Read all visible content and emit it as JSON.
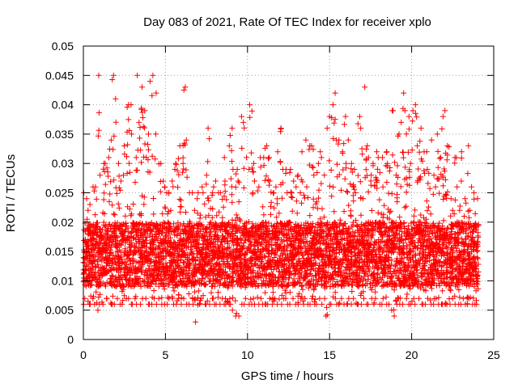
{
  "chart_data": {
    "type": "scatter",
    "title": "Day 083 of 2021, Rate Of TEC Index for receiver xplo",
    "xlabel": "GPS time / hours",
    "ylabel": "ROTI / TECUs",
    "xlim": [
      0,
      25
    ],
    "ylim": [
      0,
      0.05
    ],
    "xticks": [
      "0",
      "5",
      "10",
      "15",
      "20",
      "25"
    ],
    "yticks": [
      "0",
      "0.005",
      "0.01",
      "0.015",
      "0.02",
      "0.025",
      "0.03",
      "0.035",
      "0.04",
      "0.045",
      "0.05"
    ],
    "grid": true,
    "grid_style": "dotted",
    "marker": "plus",
    "marker_color": "#ff0000",
    "series": [
      {
        "x": [
          0.0,
          0.15,
          0.3,
          0.45,
          0.6,
          0.75,
          0.9,
          1.05,
          1.2,
          1.35,
          1.5,
          1.65,
          1.8,
          1.95,
          2.1,
          2.25,
          2.4,
          2.55,
          2.7,
          2.85,
          3.0,
          3.15,
          3.3,
          3.45,
          3.6,
          3.75,
          3.9,
          4.05,
          4.2,
          4.35,
          4.5,
          4.65,
          4.8,
          4.95,
          5.1,
          5.25,
          5.4,
          5.55,
          5.7,
          5.85,
          6.0,
          6.15,
          6.3,
          6.45,
          6.6,
          6.75,
          6.9,
          7.05,
          7.2,
          7.35,
          7.5,
          7.65,
          7.8,
          7.95,
          8.1,
          8.25,
          8.4,
          8.55,
          8.7,
          8.85,
          9.0,
          9.15,
          9.3,
          9.45,
          9.6,
          9.75,
          9.9,
          10.05,
          10.2,
          10.35,
          10.5,
          10.65,
          10.8,
          10.95,
          11.1,
          11.25,
          11.4,
          11.55,
          11.7,
          11.85,
          12.0,
          12.15,
          12.3,
          12.45,
          12.6,
          12.75,
          12.9,
          13.05,
          13.2,
          13.35,
          13.5,
          13.65,
          13.8,
          13.95,
          14.1,
          14.25,
          14.4,
          14.55,
          14.7,
          14.85,
          15.0,
          15.15,
          15.3,
          15.45,
          15.6,
          15.75,
          15.9,
          16.05,
          16.2,
          16.35,
          16.5,
          16.65,
          16.8,
          16.95,
          17.1,
          17.25,
          17.4,
          17.55,
          17.7,
          17.85,
          18.0,
          18.15,
          18.3,
          18.45,
          18.6,
          18.75,
          18.9,
          19.05,
          19.2,
          19.35,
          19.5,
          19.65,
          19.8,
          19.95,
          20.1,
          20.25,
          20.4,
          20.55,
          20.7,
          20.85,
          21.0,
          21.15,
          21.3,
          21.45,
          21.6,
          21.75,
          21.9,
          22.05,
          22.2,
          22.35,
          22.5,
          22.65,
          22.8,
          22.95,
          23.1,
          23.25,
          23.4,
          23.55,
          23.7,
          23.85,
          24.0
        ],
        "y_min": [
          0.006,
          0.007,
          0.006,
          0.006,
          0.007,
          0.006,
          0.005,
          0.006,
          0.006,
          0.007,
          0.007,
          0.006,
          0.006,
          0.006,
          0.007,
          0.006,
          0.006,
          0.007,
          0.007,
          0.006,
          0.006,
          0.007,
          0.006,
          0.006,
          0.007,
          0.007,
          0.006,
          0.006,
          0.006,
          0.007,
          0.006,
          0.007,
          0.006,
          0.006,
          0.006,
          0.007,
          0.007,
          0.006,
          0.006,
          0.007,
          0.006,
          0.007,
          0.006,
          0.006,
          0.007,
          0.006,
          0.003,
          0.006,
          0.007,
          0.006,
          0.006,
          0.006,
          0.007,
          0.006,
          0.006,
          0.006,
          0.007,
          0.006,
          0.006,
          0.006,
          0.006,
          0.005,
          0.004,
          0.004,
          0.006,
          0.006,
          0.007,
          0.006,
          0.006,
          0.007,
          0.006,
          0.006,
          0.007,
          0.006,
          0.006,
          0.006,
          0.007,
          0.006,
          0.007,
          0.006,
          0.006,
          0.007,
          0.007,
          0.006,
          0.006,
          0.007,
          0.006,
          0.006,
          0.007,
          0.006,
          0.007,
          0.006,
          0.006,
          0.007,
          0.006,
          0.006,
          0.007,
          0.006,
          0.007,
          0.004,
          0.006,
          0.006,
          0.007,
          0.006,
          0.006,
          0.007,
          0.006,
          0.006,
          0.007,
          0.006,
          0.007,
          0.006,
          0.006,
          0.006,
          0.007,
          0.006,
          0.006,
          0.007,
          0.006,
          0.007,
          0.006,
          0.006,
          0.007,
          0.006,
          0.006,
          0.005,
          0.004,
          0.006,
          0.007,
          0.006,
          0.006,
          0.007,
          0.006,
          0.006,
          0.007,
          0.006,
          0.007,
          0.006,
          0.006,
          0.006,
          0.007,
          0.006,
          0.006,
          0.007,
          0.006,
          0.006,
          0.006,
          0.006,
          0.006,
          0.006,
          0.007,
          0.006,
          0.006,
          0.006,
          0.007,
          0.006,
          0.006,
          0.007,
          0.006,
          0.006,
          0.006
        ],
        "y_max": [
          0.025,
          0.024,
          0.022,
          0.023,
          0.026,
          0.026,
          0.045,
          0.028,
          0.03,
          0.03,
          0.031,
          0.034,
          0.045,
          0.041,
          0.03,
          0.027,
          0.028,
          0.033,
          0.04,
          0.04,
          0.035,
          0.031,
          0.045,
          0.037,
          0.043,
          0.039,
          0.035,
          0.044,
          0.045,
          0.035,
          0.042,
          0.03,
          0.027,
          0.026,
          0.025,
          0.025,
          0.027,
          0.029,
          0.03,
          0.033,
          0.03,
          0.043,
          0.034,
          0.025,
          0.025,
          0.022,
          0.024,
          0.025,
          0.026,
          0.025,
          0.028,
          0.036,
          0.025,
          0.026,
          0.027,
          0.025,
          0.025,
          0.031,
          0.027,
          0.033,
          0.036,
          0.029,
          0.029,
          0.027,
          0.038,
          0.037,
          0.031,
          0.029,
          0.04,
          0.03,
          0.027,
          0.026,
          0.031,
          0.031,
          0.033,
          0.031,
          0.027,
          0.025,
          0.026,
          0.032,
          0.036,
          0.029,
          0.029,
          0.025,
          0.029,
          0.027,
          0.026,
          0.028,
          0.025,
          0.032,
          0.034,
          0.026,
          0.033,
          0.033,
          0.028,
          0.03,
          0.032,
          0.031,
          0.028,
          0.036,
          0.038,
          0.04,
          0.042,
          0.034,
          0.034,
          0.032,
          0.038,
          0.03,
          0.034,
          0.03,
          0.029,
          0.025,
          0.038,
          0.036,
          0.043,
          0.033,
          0.031,
          0.028,
          0.03,
          0.032,
          0.031,
          0.031,
          0.026,
          0.032,
          0.03,
          0.039,
          0.039,
          0.028,
          0.035,
          0.037,
          0.042,
          0.039,
          0.038,
          0.03,
          0.039,
          0.04,
          0.033,
          0.036,
          0.032,
          0.032,
          0.029,
          0.034,
          0.028,
          0.026,
          0.035,
          0.031,
          0.038,
          0.039,
          0.033,
          0.024,
          0.022,
          0.031,
          0.026,
          0.027,
          0.032,
          0.024,
          0.033,
          0.022,
          0.026,
          0.025,
          0.024
        ]
      }
    ]
  }
}
